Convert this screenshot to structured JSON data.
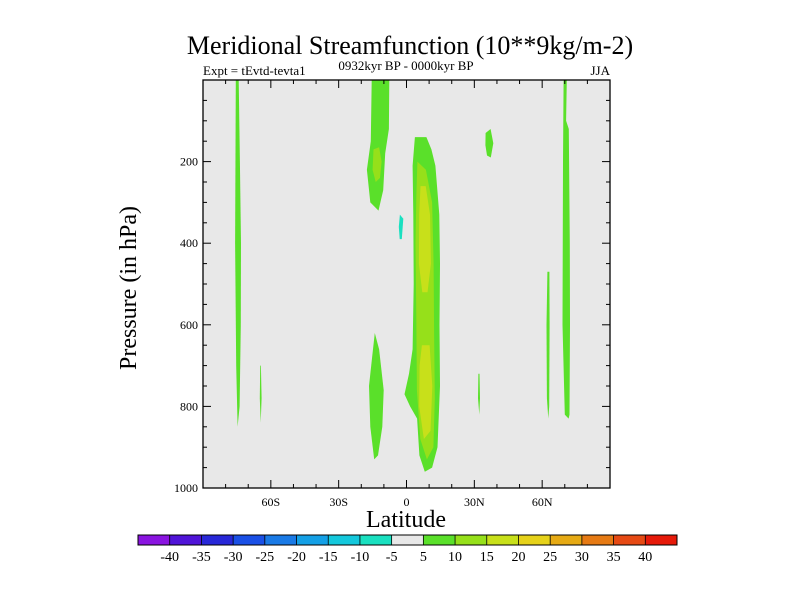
{
  "chart_data": {
    "type": "filled-contour",
    "title": "Meridional Streamfunction (10**9kg/m-2)",
    "experiment_label": "Expt = tEvtd-tevta1",
    "period_label": "0932kyr BP - 0000kyr BP",
    "season_label": "JJA",
    "xlabel": "Latitude",
    "ylabel": "Pressure (in hPa)",
    "xlim": [
      -90,
      90
    ],
    "ylim": [
      0,
      1000
    ],
    "y_inverted": true,
    "xticks": [
      {
        "value": -60,
        "label": "60S"
      },
      {
        "value": -30,
        "label": "30S"
      },
      {
        "value": 0,
        "label": "0"
      },
      {
        "value": 30,
        "label": "30N"
      },
      {
        "value": 60,
        "label": "60N"
      }
    ],
    "yticks": [
      {
        "value": 200,
        "label": "200"
      },
      {
        "value": 400,
        "label": "400"
      },
      {
        "value": 600,
        "label": "600"
      },
      {
        "value": 800,
        "label": "800"
      },
      {
        "value": 1000,
        "label": "1000"
      }
    ],
    "colorbar": {
      "levels": [
        -40,
        -35,
        -30,
        -25,
        -20,
        -15,
        -10,
        -5,
        5,
        10,
        15,
        20,
        25,
        30,
        35,
        40
      ],
      "colors": [
        "#8a14e0",
        "#5014d8",
        "#2828d8",
        "#1a50e6",
        "#1a7ae6",
        "#14a0e6",
        "#14c8dc",
        "#1ae0c0",
        "#e8e8e8",
        "#5ae02a",
        "#96e01a",
        "#c8e01a",
        "#e6d21a",
        "#e6aa14",
        "#e67a14",
        "#e64a14",
        "#e61a0a"
      ]
    },
    "regions": [
      {
        "name": "sh-polar-positive-strip",
        "value": 5,
        "polygon": [
          [
            -75.5,
            0
          ],
          [
            -74.2,
            0
          ],
          [
            -73.7,
            200
          ],
          [
            -73.2,
            400
          ],
          [
            -73.3,
            600
          ],
          [
            -73.8,
            800
          ],
          [
            -74.7,
            850
          ],
          [
            -75.3,
            700
          ],
          [
            -75.8,
            400
          ]
        ]
      },
      {
        "name": "sh-polar-negative-sliver",
        "value": -5,
        "polygon": [
          [
            -72.2,
            650
          ],
          [
            -71.3,
            650
          ],
          [
            -71.0,
            780
          ],
          [
            -71.4,
            830
          ],
          [
            -72.0,
            780
          ]
        ]
      },
      {
        "name": "sh-midlat-negative-strip",
        "value": -5,
        "polygon": [
          [
            -64.9,
            350
          ],
          [
            -64.1,
            350
          ],
          [
            -63.6,
            550
          ],
          [
            -63.9,
            780
          ],
          [
            -64.2,
            880
          ],
          [
            -64.8,
            870
          ],
          [
            -65.2,
            650
          ]
        ]
      },
      {
        "name": "sh-midlat-positive-strip",
        "value": 5,
        "polygon": [
          [
            -64.7,
            700
          ],
          [
            -64.4,
            700
          ],
          [
            -64.1,
            780
          ],
          [
            -64.5,
            840
          ],
          [
            -64.9,
            780
          ]
        ]
      },
      {
        "name": "sh-upper-positive-column",
        "value": 5,
        "polygon": [
          [
            -15.4,
            0
          ],
          [
            -7.6,
            0
          ],
          [
            -7.8,
            120
          ],
          [
            -9.4,
            180
          ],
          [
            -10.3,
            270
          ],
          [
            -12.4,
            320
          ],
          [
            -16.0,
            300
          ],
          [
            -17.5,
            220
          ],
          [
            -15.8,
            150
          ]
        ]
      },
      {
        "name": "sh-upper-positive-core",
        "value": 10,
        "polygon": [
          [
            -14.6,
            170
          ],
          [
            -12.1,
            165
          ],
          [
            -11.0,
            200
          ],
          [
            -11.7,
            240
          ],
          [
            -13.6,
            250
          ],
          [
            -15.0,
            220
          ]
        ]
      },
      {
        "name": "sh-lower-positive-lobe",
        "value": 5,
        "polygon": [
          [
            -14.0,
            620
          ],
          [
            -12.1,
            660
          ],
          [
            -10.1,
            760
          ],
          [
            -10.7,
            850
          ],
          [
            -12.6,
            920
          ],
          [
            -14.3,
            930
          ],
          [
            -16.0,
            850
          ],
          [
            -16.6,
            750
          ],
          [
            -15.2,
            680
          ]
        ]
      },
      {
        "name": "sh-subtropical-negative-cell",
        "value": -5,
        "polygon": [
          [
            -8.0,
            210
          ],
          [
            -4.2,
            210
          ],
          [
            -1.8,
            260
          ],
          [
            -1.3,
            360
          ],
          [
            -2.2,
            500
          ],
          [
            -2.6,
            620
          ],
          [
            -4.5,
            640
          ],
          [
            -6.4,
            570
          ],
          [
            -8.4,
            430
          ],
          [
            -8.8,
            300
          ]
        ]
      },
      {
        "name": "sh-subtropical-negative-core",
        "value": -10,
        "polygon": [
          [
            -2.9,
            330
          ],
          [
            -1.4,
            340
          ],
          [
            -2.1,
            390
          ],
          [
            -3.0,
            390
          ],
          [
            -3.4,
            360
          ]
        ]
      },
      {
        "name": "tropical-positive-cell",
        "value": 5,
        "polygon": [
          [
            3.7,
            140
          ],
          [
            8.8,
            140
          ],
          [
            11.0,
            170
          ],
          [
            12.8,
            210
          ],
          [
            14.5,
            330
          ],
          [
            14.8,
            450
          ],
          [
            14.6,
            600
          ],
          [
            14.8,
            750
          ],
          [
            13.7,
            900
          ],
          [
            11.3,
            950
          ],
          [
            8.1,
            960
          ],
          [
            5.7,
            920
          ],
          [
            4.7,
            830
          ],
          [
            1.6,
            800
          ],
          [
            -0.9,
            770
          ],
          [
            1.1,
            720
          ],
          [
            2.7,
            660
          ],
          [
            3.2,
            500
          ],
          [
            3.0,
            330
          ],
          [
            2.7,
            210
          ]
        ]
      },
      {
        "name": "tropical-positive-interior",
        "value": 10,
        "polygon": [
          [
            4.8,
            200
          ],
          [
            8.6,
            220
          ],
          [
            11.3,
            300
          ],
          [
            12.0,
            450
          ],
          [
            12.2,
            620
          ],
          [
            12.5,
            780
          ],
          [
            11.9,
            900
          ],
          [
            9.0,
            930
          ],
          [
            6.1,
            880
          ],
          [
            4.6,
            760
          ],
          [
            4.4,
            600
          ],
          [
            4.0,
            400
          ],
          [
            4.4,
            280
          ]
        ]
      },
      {
        "name": "tropical-positive-core-upper",
        "value": 15,
        "polygon": [
          [
            6.2,
            260
          ],
          [
            8.5,
            260
          ],
          [
            10.4,
            330
          ],
          [
            10.8,
            450
          ],
          [
            9.3,
            520
          ],
          [
            7.0,
            520
          ],
          [
            5.5,
            450
          ],
          [
            5.6,
            330
          ]
        ]
      },
      {
        "name": "tropical-positive-core-lower",
        "value": 15,
        "polygon": [
          [
            6.8,
            650
          ],
          [
            10.2,
            650
          ],
          [
            11.4,
            750
          ],
          [
            10.6,
            860
          ],
          [
            7.7,
            880
          ],
          [
            5.6,
            800
          ],
          [
            5.8,
            700
          ]
        ]
      },
      {
        "name": "nh-subtropical-negative-sliver",
        "value": -5,
        "polygon": [
          [
            22.1,
            230
          ],
          [
            24.0,
            230
          ],
          [
            24.7,
            300
          ],
          [
            24.2,
            370
          ],
          [
            24.0,
            400
          ],
          [
            23.0,
            350
          ],
          [
            22.4,
            270
          ]
        ]
      },
      {
        "name": "nh-upper-positive-blob",
        "value": 5,
        "polygon": [
          [
            35.0,
            130
          ],
          [
            37.2,
            120
          ],
          [
            38.4,
            155
          ],
          [
            37.3,
            190
          ],
          [
            35.6,
            185
          ],
          [
            34.9,
            160
          ]
        ]
      },
      {
        "name": "nh-lower-positive-sliver",
        "value": 5,
        "polygon": [
          [
            31.8,
            720
          ],
          [
            32.3,
            720
          ],
          [
            32.5,
            780
          ],
          [
            32.2,
            820
          ],
          [
            31.6,
            780
          ]
        ]
      },
      {
        "name": "nh-midlat-positive-strip",
        "value": 5,
        "polygon": [
          [
            62.3,
            470
          ],
          [
            63.2,
            470
          ],
          [
            63.3,
            600
          ],
          [
            63.1,
            800
          ],
          [
            62.7,
            830
          ],
          [
            62.1,
            780
          ],
          [
            61.9,
            600
          ]
        ]
      },
      {
        "name": "nh-polar-positive-strip",
        "value": 5,
        "polygon": [
          [
            69.5,
            0
          ],
          [
            70.9,
            0
          ],
          [
            70.6,
            100
          ],
          [
            71.8,
            120
          ],
          [
            72.2,
            400
          ],
          [
            72.3,
            600
          ],
          [
            72.1,
            820
          ],
          [
            71.7,
            830
          ],
          [
            70.0,
            820
          ],
          [
            69.0,
            600
          ],
          [
            69.2,
            200
          ]
        ]
      }
    ]
  }
}
